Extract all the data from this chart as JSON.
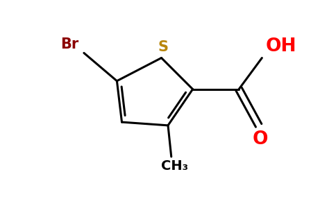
{
  "bg_color": "#ffffff",
  "ring_color": "#000000",
  "S_color": "#b8860b",
  "Br_color": "#8b0000",
  "O_color": "#ff0000",
  "OH_color": "#ff0000",
  "C_color": "#000000",
  "line_width": 2.2,
  "S_label": "S",
  "Br_label": "Br",
  "OH_label": "OH",
  "O_label": "O",
  "CH3_label": "CH₃",
  "S_fontsize": 15,
  "Br_fontsize": 15,
  "O_fontsize": 19,
  "OH_fontsize": 19,
  "CH3_fontsize": 14
}
